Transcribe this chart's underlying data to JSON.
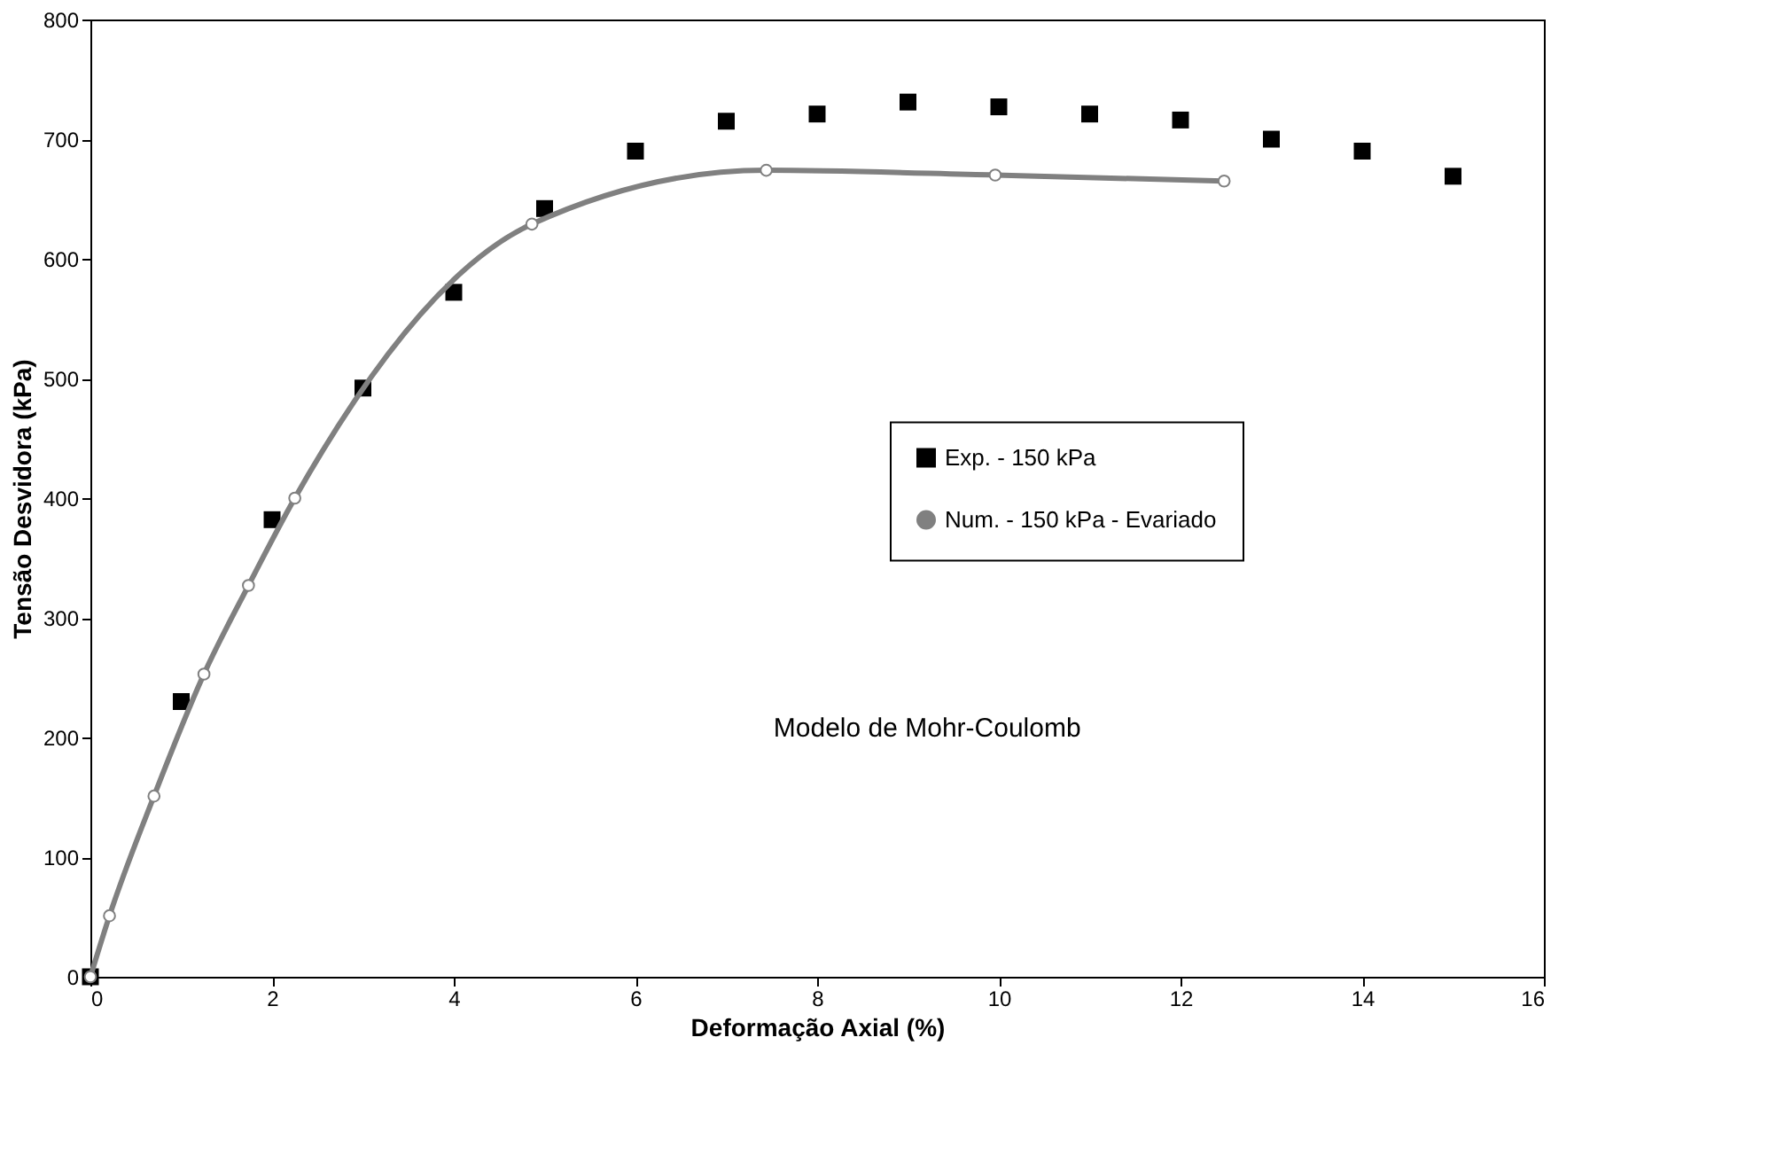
{
  "chart_data": {
    "type": "scatter",
    "xlabel": "Deformação Axial (%)",
    "ylabel": "Tensão Desvidora (kPa)",
    "xlim": [
      0,
      16
    ],
    "xticks": [
      0,
      2,
      4,
      6,
      8,
      10,
      12,
      14,
      16
    ],
    "ylim": [
      0,
      800
    ],
    "yticks": [
      0,
      100,
      200,
      300,
      400,
      500,
      600,
      700,
      800
    ],
    "grid": false,
    "legend": "right",
    "series": [
      {
        "name": "Exp. - 150 kPa",
        "marker": "square",
        "color": "#000000",
        "x": [
          0,
          1,
          2,
          3,
          4,
          5,
          6,
          7,
          8,
          9,
          10,
          11,
          12,
          13,
          14,
          15
        ],
        "values": [
          0,
          230,
          382,
          492,
          572,
          642,
          690,
          715,
          721,
          731,
          727,
          721,
          716,
          700,
          690,
          669
        ]
      },
      {
        "name": "Num. - 150 kPa - Evariado",
        "type": "line",
        "marker": "circle",
        "line_style": "solid",
        "color": "#808080",
        "x": [
          0,
          0.21,
          0.7,
          1.25,
          1.74,
          2.25,
          4.86,
          7.44,
          9.96,
          12.48
        ],
        "values": [
          0,
          51,
          151,
          253,
          327,
          400,
          629,
          674,
          670,
          665
        ]
      }
    ],
    "annotations": [
      "Modelo de Mohr-Coulomb"
    ]
  }
}
